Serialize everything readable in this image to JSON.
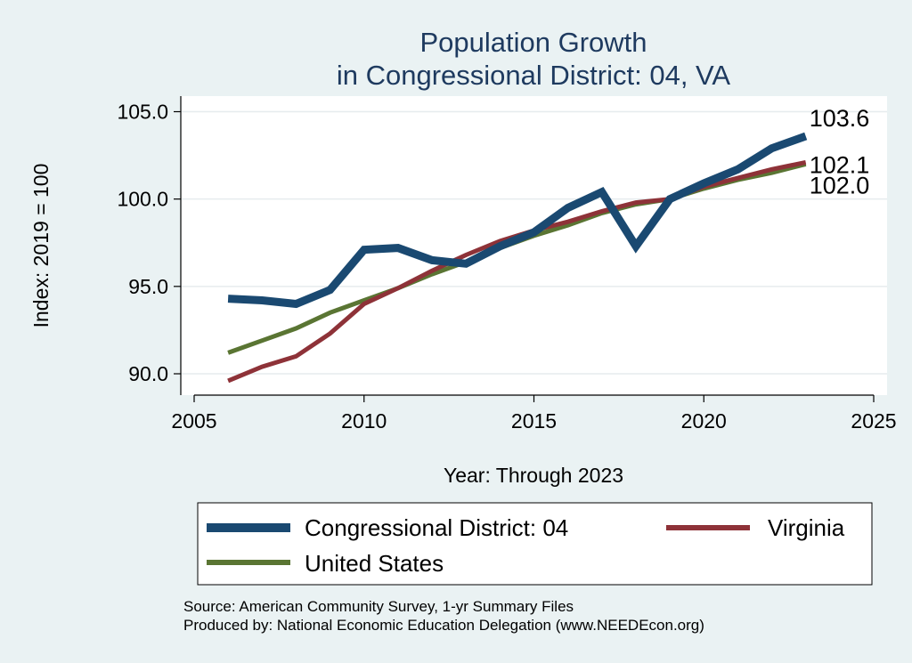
{
  "chart_data": {
    "type": "line",
    "title": [
      "Population Growth",
      "in Congressional District: 04, VA"
    ],
    "xlabel": "Year: Through 2023",
    "ylabel": "Index: 2019 = 100",
    "xlim": [
      2005,
      2025
    ],
    "ylim": [
      89,
      106
    ],
    "xticks": [
      2005,
      2010,
      2015,
      2020,
      2025
    ],
    "yticks": [
      90,
      95,
      100,
      105
    ],
    "ytick_labels": [
      "90.0",
      "95.0",
      "100.0",
      "105.0"
    ],
    "grid": "horizontal",
    "legend": "bottom",
    "x": [
      2006,
      2007,
      2008,
      2009,
      2010,
      2011,
      2012,
      2013,
      2014,
      2015,
      2016,
      2017,
      2018,
      2019,
      2020,
      2021,
      2022,
      2023
    ],
    "series": [
      {
        "name": "Congressional District: 04",
        "color": "#1a4971",
        "values": [
          94.3,
          94.2,
          94.0,
          94.8,
          97.1,
          97.2,
          96.5,
          96.3,
          97.3,
          98.1,
          99.5,
          100.4,
          97.3,
          100.0,
          100.9,
          101.7,
          102.9,
          103.6
        ],
        "end_label": "103.6"
      },
      {
        "name": "Virginia",
        "color": "#8e3238",
        "values": [
          89.6,
          90.4,
          91.0,
          92.3,
          94.0,
          94.9,
          95.9,
          96.8,
          97.6,
          98.2,
          98.7,
          99.3,
          99.8,
          100.0,
          100.7,
          101.2,
          101.7,
          102.1
        ],
        "end_label": "102.1"
      },
      {
        "name": "United States",
        "color": "#5a7533",
        "values": [
          91.2,
          91.9,
          92.6,
          93.5,
          94.2,
          94.9,
          95.7,
          96.4,
          97.2,
          97.9,
          98.5,
          99.2,
          99.7,
          100.0,
          100.6,
          101.1,
          101.5,
          102.0
        ],
        "end_label": "102.0"
      }
    ],
    "notes": [
      "Source: American Community Survey, 1-yr Summary Files",
      "Produced by: National Economic Education Delegation (www.NEEDEcon.org)"
    ]
  }
}
